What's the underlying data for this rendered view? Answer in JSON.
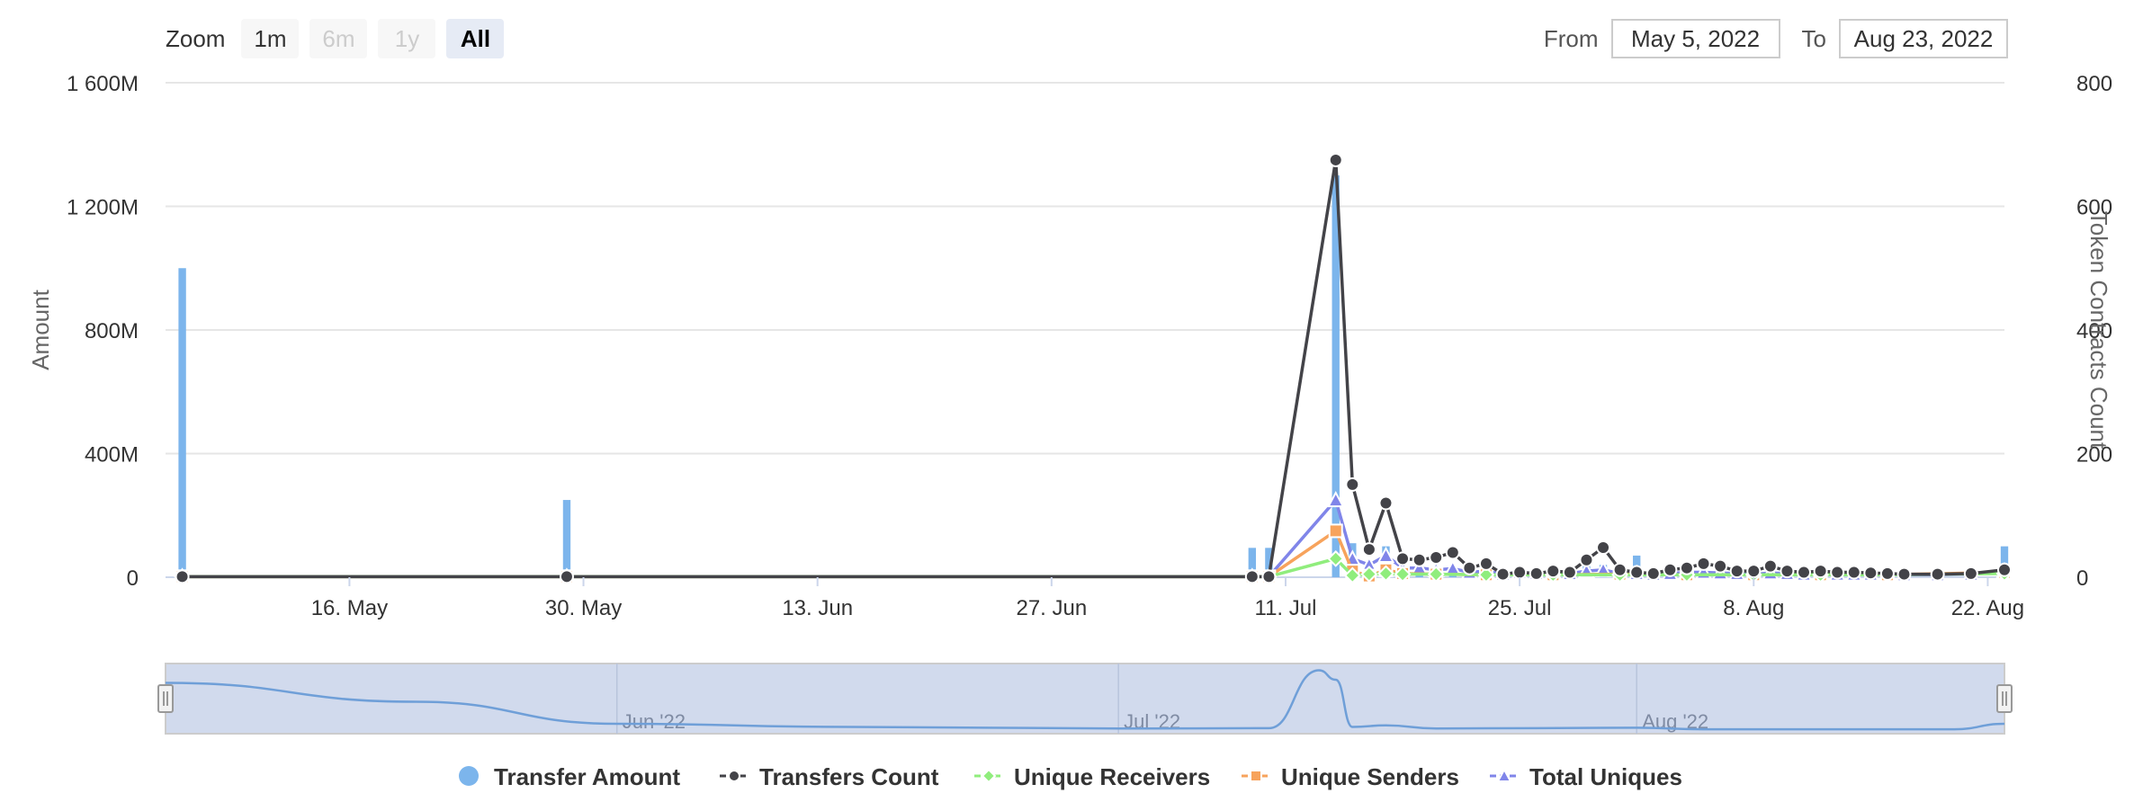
{
  "range_selector": {
    "zoom_label": "Zoom",
    "buttons": [
      {
        "label": "1m",
        "state": "normal"
      },
      {
        "label": "6m",
        "state": "disabled"
      },
      {
        "label": "1y",
        "state": "disabled"
      },
      {
        "label": "All",
        "state": "selected"
      }
    ],
    "from_label": "From",
    "from_value": "May 5, 2022",
    "to_label": "To",
    "to_value": "Aug 23, 2022"
  },
  "chart_data": {
    "type": "line",
    "title": "",
    "x_start": "2022-05-05",
    "x_end": "2022-08-23",
    "grid": true,
    "legend_position": "bottom-center",
    "left_axis": {
      "label": "Amount",
      "ylim": [
        0,
        1600000000
      ],
      "ticks": [
        {
          "value": 0,
          "label": "0"
        },
        {
          "value": 400000000,
          "label": "400M"
        },
        {
          "value": 800000000,
          "label": "800M"
        },
        {
          "value": 1200000000,
          "label": "1 200M"
        },
        {
          "value": 1600000000,
          "label": "1 600M"
        }
      ]
    },
    "right_axis": {
      "label": "Token Contracts Count",
      "ylim": [
        0,
        800
      ],
      "ticks": [
        {
          "value": 0,
          "label": "0"
        },
        {
          "value": 200,
          "label": "200"
        },
        {
          "value": 400,
          "label": "400"
        },
        {
          "value": 600,
          "label": "600"
        },
        {
          "value": 800,
          "label": "800"
        }
      ]
    },
    "x_ticks": [
      {
        "date": "2022-05-16",
        "label": "16. May"
      },
      {
        "date": "2022-05-30",
        "label": "30. May"
      },
      {
        "date": "2022-06-13",
        "label": "13. Jun"
      },
      {
        "date": "2022-06-27",
        "label": "27. Jun"
      },
      {
        "date": "2022-07-11",
        "label": "11. Jul"
      },
      {
        "date": "2022-07-25",
        "label": "25. Jul"
      },
      {
        "date": "2022-08-08",
        "label": "8. Aug"
      },
      {
        "date": "2022-08-22",
        "label": "22. Aug"
      }
    ],
    "series": [
      {
        "name": "Transfer Amount",
        "type": "bar",
        "axis": "left",
        "color": "#7cb5ec",
        "marker": "circle",
        "points": [
          [
            "2022-05-06",
            1000000000
          ],
          [
            "2022-05-29",
            250000000
          ],
          [
            "2022-07-09",
            95000000
          ],
          [
            "2022-07-10",
            95000000
          ],
          [
            "2022-07-14",
            1300000000
          ],
          [
            "2022-07-15",
            110000000
          ],
          [
            "2022-07-16",
            40000000
          ],
          [
            "2022-07-17",
            100000000
          ],
          [
            "2022-07-18",
            30000000
          ],
          [
            "2022-07-19",
            15000000
          ],
          [
            "2022-07-20",
            20000000
          ],
          [
            "2022-07-21",
            25000000
          ],
          [
            "2022-07-22",
            10000000
          ],
          [
            "2022-07-24",
            10000000
          ],
          [
            "2022-07-29",
            50000000
          ],
          [
            "2022-07-30",
            40000000
          ],
          [
            "2022-08-01",
            70000000
          ],
          [
            "2022-08-05",
            15000000
          ],
          [
            "2022-08-08",
            20000000
          ],
          [
            "2022-08-15",
            10000000
          ],
          [
            "2022-08-23",
            100000000
          ]
        ]
      },
      {
        "name": "Transfers Count",
        "type": "line",
        "axis": "right",
        "color": "#434348",
        "marker": "circle",
        "points": [
          [
            "2022-05-06",
            1
          ],
          [
            "2022-05-29",
            1
          ],
          [
            "2022-07-09",
            1
          ],
          [
            "2022-07-10",
            1
          ],
          [
            "2022-07-14",
            675
          ],
          [
            "2022-07-15",
            150
          ],
          [
            "2022-07-16",
            45
          ],
          [
            "2022-07-17",
            120
          ],
          [
            "2022-07-18",
            30
          ],
          [
            "2022-07-19",
            28
          ],
          [
            "2022-07-20",
            32
          ],
          [
            "2022-07-21",
            40
          ],
          [
            "2022-07-22",
            15
          ],
          [
            "2022-07-23",
            22
          ],
          [
            "2022-07-24",
            5
          ],
          [
            "2022-07-25",
            8
          ],
          [
            "2022-07-26",
            6
          ],
          [
            "2022-07-27",
            10
          ],
          [
            "2022-07-28",
            8
          ],
          [
            "2022-07-29",
            28
          ],
          [
            "2022-07-30",
            48
          ],
          [
            "2022-07-31",
            12
          ],
          [
            "2022-08-01",
            8
          ],
          [
            "2022-08-02",
            6
          ],
          [
            "2022-08-03",
            12
          ],
          [
            "2022-08-04",
            15
          ],
          [
            "2022-08-05",
            22
          ],
          [
            "2022-08-06",
            18
          ],
          [
            "2022-08-07",
            10
          ],
          [
            "2022-08-08",
            10
          ],
          [
            "2022-08-09",
            18
          ],
          [
            "2022-08-10",
            10
          ],
          [
            "2022-08-11",
            8
          ],
          [
            "2022-08-12",
            10
          ],
          [
            "2022-08-13",
            8
          ],
          [
            "2022-08-14",
            8
          ],
          [
            "2022-08-15",
            7
          ],
          [
            "2022-08-16",
            6
          ],
          [
            "2022-08-17",
            5
          ],
          [
            "2022-08-19",
            5
          ],
          [
            "2022-08-21",
            6
          ],
          [
            "2022-08-23",
            12
          ]
        ]
      },
      {
        "name": "Unique Receivers",
        "type": "line",
        "axis": "right",
        "color": "#90ed7d",
        "marker": "diamond",
        "points": [
          [
            "2022-05-06",
            1
          ],
          [
            "2022-05-29",
            1
          ],
          [
            "2022-07-09",
            1
          ],
          [
            "2022-07-10",
            1
          ],
          [
            "2022-07-14",
            30
          ],
          [
            "2022-07-15",
            3
          ],
          [
            "2022-07-16",
            5
          ],
          [
            "2022-07-17",
            6
          ],
          [
            "2022-07-18",
            5
          ],
          [
            "2022-07-20",
            5
          ],
          [
            "2022-07-23",
            4
          ],
          [
            "2022-07-27",
            4
          ],
          [
            "2022-07-31",
            4
          ],
          [
            "2022-08-04",
            4
          ],
          [
            "2022-08-08",
            4
          ],
          [
            "2022-08-12",
            4
          ],
          [
            "2022-08-16",
            4
          ],
          [
            "2022-08-23",
            6
          ]
        ]
      },
      {
        "name": "Unique Senders",
        "type": "line",
        "axis": "right",
        "color": "#f7a35c",
        "marker": "square",
        "points": [
          [
            "2022-05-06",
            1
          ],
          [
            "2022-05-29",
            1
          ],
          [
            "2022-07-09",
            1
          ],
          [
            "2022-07-10",
            1
          ],
          [
            "2022-07-14",
            75
          ],
          [
            "2022-07-15",
            10
          ],
          [
            "2022-07-16",
            2
          ],
          [
            "2022-07-17",
            12
          ],
          [
            "2022-07-18",
            6
          ],
          [
            "2022-07-20",
            5
          ],
          [
            "2022-07-23",
            4
          ],
          [
            "2022-07-27",
            4
          ],
          [
            "2022-07-31",
            5
          ],
          [
            "2022-08-04",
            4
          ],
          [
            "2022-08-08",
            4
          ],
          [
            "2022-08-12",
            4
          ],
          [
            "2022-08-16",
            4
          ],
          [
            "2022-08-23",
            8
          ]
        ]
      },
      {
        "name": "Total Uniques",
        "type": "line",
        "axis": "right",
        "color": "#8085e9",
        "marker": "triangle",
        "points": [
          [
            "2022-05-06",
            1
          ],
          [
            "2022-05-29",
            1
          ],
          [
            "2022-07-09",
            1
          ],
          [
            "2022-07-10",
            1
          ],
          [
            "2022-07-14",
            125
          ],
          [
            "2022-07-15",
            30
          ],
          [
            "2022-07-16",
            20
          ],
          [
            "2022-07-17",
            35
          ],
          [
            "2022-07-18",
            15
          ],
          [
            "2022-07-19",
            15
          ],
          [
            "2022-07-20",
            12
          ],
          [
            "2022-07-21",
            14
          ],
          [
            "2022-07-22",
            8
          ],
          [
            "2022-07-23",
            10
          ],
          [
            "2022-07-24",
            5
          ],
          [
            "2022-07-25",
            8
          ],
          [
            "2022-07-26",
            6
          ],
          [
            "2022-07-27",
            8
          ],
          [
            "2022-07-28",
            6
          ],
          [
            "2022-07-29",
            10
          ],
          [
            "2022-07-30",
            12
          ],
          [
            "2022-07-31",
            6
          ],
          [
            "2022-08-01",
            6
          ],
          [
            "2022-08-02",
            5
          ],
          [
            "2022-08-03",
            6
          ],
          [
            "2022-08-04",
            8
          ],
          [
            "2022-08-05",
            8
          ],
          [
            "2022-08-06",
            7
          ],
          [
            "2022-08-07",
            6
          ],
          [
            "2022-08-08",
            5
          ],
          [
            "2022-08-09",
            7
          ],
          [
            "2022-08-10",
            6
          ],
          [
            "2022-08-11",
            5
          ],
          [
            "2022-08-12",
            6
          ],
          [
            "2022-08-13",
            5
          ],
          [
            "2022-08-14",
            5
          ],
          [
            "2022-08-15",
            5
          ],
          [
            "2022-08-16",
            5
          ],
          [
            "2022-08-17",
            4
          ],
          [
            "2022-08-19",
            4
          ],
          [
            "2022-08-21",
            5
          ],
          [
            "2022-08-23",
            10
          ]
        ]
      }
    ]
  },
  "navigator": {
    "labels": [
      {
        "date": "2022-06-01",
        "label": "Jun '22"
      },
      {
        "date": "2022-07-01",
        "label": "Jul '22"
      },
      {
        "date": "2022-08-01",
        "label": "Aug '22"
      }
    ],
    "series": [
      [
        "2022-05-05",
        300
      ],
      [
        "2022-05-20",
        180
      ],
      [
        "2022-06-01",
        40
      ],
      [
        "2022-06-15",
        20
      ],
      [
        "2022-07-01",
        10
      ],
      [
        "2022-07-10",
        12
      ],
      [
        "2022-07-13",
        380
      ],
      [
        "2022-07-14",
        320
      ],
      [
        "2022-07-15",
        20
      ],
      [
        "2022-07-17",
        30
      ],
      [
        "2022-07-20",
        10
      ],
      [
        "2022-08-01",
        15
      ],
      [
        "2022-08-05",
        5
      ],
      [
        "2022-08-20",
        5
      ],
      [
        "2022-08-23",
        40
      ]
    ],
    "ylim": [
      0,
      400
    ]
  }
}
